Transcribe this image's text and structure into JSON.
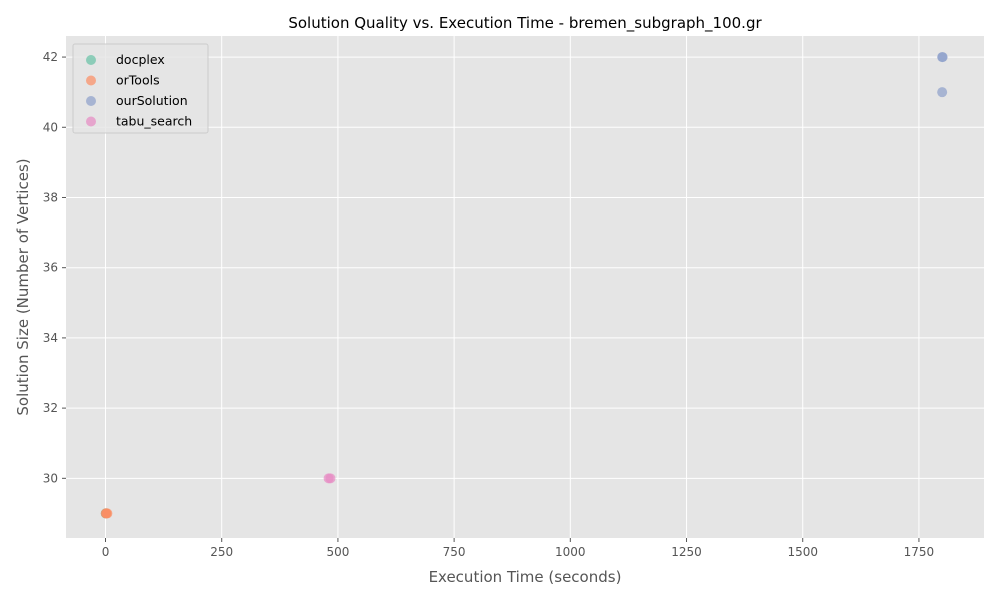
{
  "chart_data": {
    "type": "scatter",
    "title": "Solution Quality vs. Execution Time - bremen_subgraph_100.gr",
    "xlabel": "Execution Time (seconds)",
    "ylabel": "Solution Size (Number of Vertices)",
    "xlim": [
      -85,
      1890
    ],
    "ylim": [
      28.3,
      42.6
    ],
    "x_ticks": [
      0,
      250,
      500,
      750,
      1000,
      1250,
      1500,
      1750
    ],
    "y_ticks": [
      30,
      32,
      34,
      36,
      38,
      40,
      42
    ],
    "grid": true,
    "legend_position": "top-left",
    "series": [
      {
        "name": "docplex",
        "color": "#66c2a5",
        "points": [
          {
            "x": 0.5,
            "y": 29
          },
          {
            "x": 1.0,
            "y": 29
          }
        ]
      },
      {
        "name": "orTools",
        "color": "#fc8d62",
        "points": [
          {
            "x": 0.5,
            "y": 29
          },
          {
            "x": 2,
            "y": 29
          },
          {
            "x": 4,
            "y": 29
          }
        ]
      },
      {
        "name": "ourSolution",
        "color": "#8da0cb",
        "points": [
          {
            "x": 1800,
            "y": 42
          },
          {
            "x": 1801,
            "y": 42
          },
          {
            "x": 1800,
            "y": 41
          }
        ]
      },
      {
        "name": "tabu_search",
        "color": "#e78ac3",
        "points": [
          {
            "x": 480,
            "y": 30
          },
          {
            "x": 484,
            "y": 30
          }
        ]
      }
    ]
  }
}
